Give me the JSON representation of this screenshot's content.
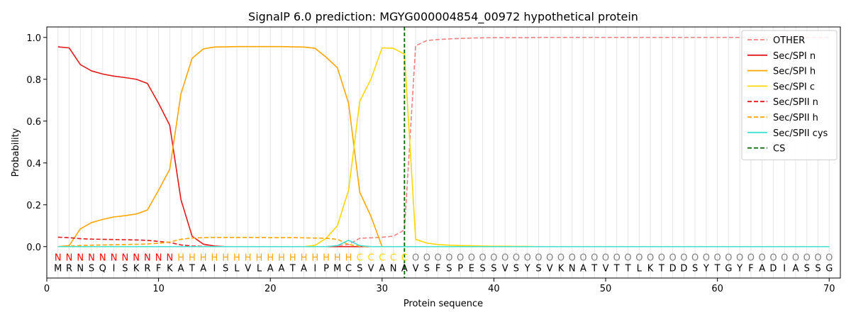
{
  "chart_data": {
    "type": "line",
    "title": "SignalP 6.0 prediction: MGYG000004854_00972 hypothetical protein",
    "xlabel": "Protein sequence",
    "ylabel": "Probability",
    "xlim": [
      0,
      71
    ],
    "ylim": [
      -0.15,
      1.05
    ],
    "x_ticks": [
      0,
      10,
      20,
      30,
      40,
      50,
      60,
      70
    ],
    "y_ticks": [
      0.0,
      0.2,
      0.4,
      0.6,
      0.8,
      1.0
    ],
    "x_tick_labels": [
      "0",
      "10",
      "20",
      "30",
      "40",
      "50",
      "60",
      "70"
    ],
    "y_tick_labels": [
      "0.0",
      "0.2",
      "0.4",
      "0.6",
      "0.8",
      "1.0"
    ],
    "grid": "vertical lines at each residue",
    "legend_position": "top-right",
    "cleavage_site": 32,
    "sequence": [
      "M",
      "R",
      "N",
      "S",
      "Q",
      "I",
      "S",
      "K",
      "R",
      "F",
      "K",
      "A",
      "T",
      "A",
      "I",
      "S",
      "L",
      "V",
      "L",
      "A",
      "A",
      "T",
      "A",
      "I",
      "P",
      "M",
      "C",
      "S",
      "V",
      "A",
      "N",
      "A",
      "V",
      "S",
      "F",
      "S",
      "P",
      "E",
      "S",
      "S",
      "V",
      "S",
      "Y",
      "S",
      "V",
      "K",
      "N",
      "A",
      "T",
      "V",
      "T",
      "T",
      "L",
      "K",
      "T",
      "D",
      "D",
      "S",
      "Y",
      "T",
      "G",
      "Y",
      "F",
      "A",
      "D",
      "I",
      "A",
      "S",
      "S",
      "G"
    ],
    "region_labels": [
      "N",
      "N",
      "N",
      "N",
      "N",
      "N",
      "N",
      "N",
      "N",
      "N",
      "N",
      "H",
      "H",
      "H",
      "H",
      "H",
      "H",
      "H",
      "H",
      "H",
      "H",
      "H",
      "H",
      "H",
      "H",
      "H",
      "H",
      "C",
      "C",
      "C",
      "C",
      "C",
      "O",
      "O",
      "O",
      "O",
      "O",
      "O",
      "O",
      "O",
      "O",
      "O",
      "O",
      "O",
      "O",
      "O",
      "O",
      "O",
      "O",
      "O",
      "O",
      "O",
      "O",
      "O",
      "O",
      "O",
      "O",
      "O",
      "O",
      "O",
      "O",
      "O",
      "O",
      "O",
      "O",
      "O",
      "O",
      "O",
      "O",
      "O"
    ],
    "region_colors": {
      "N": "#ff0000",
      "H": "#ffa500",
      "C": "#ffd700",
      "O": "#808080"
    },
    "series": [
      {
        "name": "OTHER",
        "color": "#f08080",
        "dash": "dashed",
        "values": [
          0,
          0,
          0,
          0,
          0,
          0,
          0,
          0,
          0,
          0,
          0,
          0,
          0,
          0,
          0,
          0,
          0,
          0,
          0,
          0,
          0,
          0,
          0,
          0,
          0,
          0.005,
          0.01,
          0.04,
          0.042,
          0.045,
          0.05,
          0.08,
          0.96,
          0.985,
          0.99,
          0.993,
          0.995,
          0.997,
          0.998,
          0.999,
          0.999,
          0.999,
          0.999,
          1,
          1,
          1,
          1,
          1,
          1,
          1,
          1,
          1,
          1,
          1,
          1,
          1,
          1,
          1,
          1,
          1,
          1,
          1,
          1,
          1,
          1,
          1,
          1,
          1,
          1,
          1
        ]
      },
      {
        "name": "Sec/SPI n",
        "color": "#e31a1c",
        "dash": "solid",
        "values": [
          0.955,
          0.95,
          0.87,
          0.84,
          0.825,
          0.815,
          0.808,
          0.8,
          0.78,
          0.685,
          0.58,
          0.225,
          0.05,
          0.012,
          0.003,
          0,
          0,
          0,
          0,
          0,
          0,
          0,
          0,
          0,
          0,
          0,
          0,
          0,
          0,
          0,
          0,
          0,
          0,
          0,
          0,
          0,
          0,
          0,
          0,
          0,
          0,
          0,
          0,
          0,
          0,
          0,
          0,
          0,
          0,
          0,
          0,
          0,
          0,
          0,
          0,
          0,
          0,
          0,
          0,
          0,
          0,
          0,
          0,
          0,
          0,
          0,
          0,
          0,
          0,
          0
        ]
      },
      {
        "name": "Sec/SPI h",
        "color": "#ffa500",
        "dash": "solid",
        "values": [
          0,
          0.005,
          0.085,
          0.115,
          0.13,
          0.142,
          0.148,
          0.156,
          0.175,
          0.27,
          0.37,
          0.73,
          0.9,
          0.945,
          0.954,
          0.955,
          0.956,
          0.956,
          0.956,
          0.956,
          0.956,
          0.955,
          0.954,
          0.948,
          0.905,
          0.855,
          0.685,
          0.26,
          0.145,
          0.0,
          0,
          0,
          0,
          0,
          0,
          0,
          0,
          0,
          0,
          0,
          0,
          0,
          0,
          0,
          0,
          0,
          0,
          0,
          0,
          0,
          0,
          0,
          0,
          0,
          0,
          0,
          0,
          0,
          0,
          0,
          0,
          0,
          0,
          0,
          0,
          0,
          0,
          0,
          0,
          0
        ]
      },
      {
        "name": "Sec/SPI c",
        "color": "#ffd700",
        "dash": "solid",
        "values": [
          0,
          0,
          0,
          0,
          0,
          0,
          0,
          0,
          0,
          0,
          0,
          0,
          0,
          0,
          0,
          0,
          0,
          0,
          0,
          0,
          0,
          0,
          0,
          0.006,
          0.04,
          0.1,
          0.27,
          0.695,
          0.8,
          0.95,
          0.948,
          0.92,
          0.035,
          0.017,
          0.01,
          0.007,
          0.005,
          0.004,
          0.003,
          0.002,
          0.002,
          0.001,
          0.001,
          0,
          0,
          0,
          0,
          0,
          0,
          0,
          0,
          0,
          0,
          0,
          0,
          0,
          0,
          0,
          0,
          0,
          0,
          0,
          0,
          0,
          0,
          0,
          0,
          0,
          0,
          0
        ]
      },
      {
        "name": "Sec/SPII n",
        "color": "#e31a1c",
        "dash": "dashed",
        "values": [
          0.045,
          0.043,
          0.038,
          0.036,
          0.035,
          0.034,
          0.033,
          0.032,
          0.03,
          0.025,
          0.02,
          0.008,
          0.003,
          0.001,
          0,
          0,
          0,
          0,
          0,
          0,
          0,
          0,
          0,
          0,
          0,
          0,
          0,
          0,
          0,
          0,
          0,
          0,
          0,
          0,
          0,
          0,
          0,
          0,
          0,
          0,
          0,
          0,
          0,
          0,
          0,
          0,
          0,
          0,
          0,
          0,
          0,
          0,
          0,
          0,
          0,
          0,
          0,
          0,
          0,
          0,
          0,
          0,
          0,
          0,
          0,
          0,
          0,
          0,
          0,
          0
        ]
      },
      {
        "name": "Sec/SPII h",
        "color": "#ffa500",
        "dash": "dashed",
        "values": [
          0,
          0.002,
          0.005,
          0.007,
          0.008,
          0.009,
          0.01,
          0.011,
          0.013,
          0.016,
          0.022,
          0.035,
          0.041,
          0.043,
          0.044,
          0.044,
          0.044,
          0.044,
          0.044,
          0.043,
          0.043,
          0.043,
          0.042,
          0.041,
          0.04,
          0.035,
          0.01,
          0.002,
          0,
          0,
          0,
          0,
          0,
          0,
          0,
          0,
          0,
          0,
          0,
          0,
          0,
          0,
          0,
          0,
          0,
          0,
          0,
          0,
          0,
          0,
          0,
          0,
          0,
          0,
          0,
          0,
          0,
          0,
          0,
          0,
          0,
          0,
          0,
          0,
          0,
          0,
          0,
          0,
          0,
          0
        ]
      },
      {
        "name": "Sec/SPII cys",
        "color": "#40e0d0",
        "dash": "solid",
        "values": [
          0,
          0,
          0,
          0,
          0,
          0,
          0,
          0,
          0,
          0,
          0,
          0,
          0,
          0,
          0,
          0,
          0,
          0,
          0,
          0,
          0,
          0,
          0,
          0,
          0,
          0.005,
          0.03,
          0.005,
          0,
          0,
          0,
          0,
          0,
          0,
          0,
          0,
          0,
          0,
          0,
          0,
          0,
          0,
          0,
          0,
          0,
          0,
          0,
          0,
          0,
          0,
          0,
          0,
          0,
          0,
          0,
          0,
          0,
          0,
          0,
          0,
          0,
          0,
          0,
          0,
          0,
          0,
          0,
          0,
          0,
          0
        ]
      },
      {
        "name": "CS",
        "color": "#006400",
        "dash": "dashed",
        "values": []
      }
    ]
  }
}
